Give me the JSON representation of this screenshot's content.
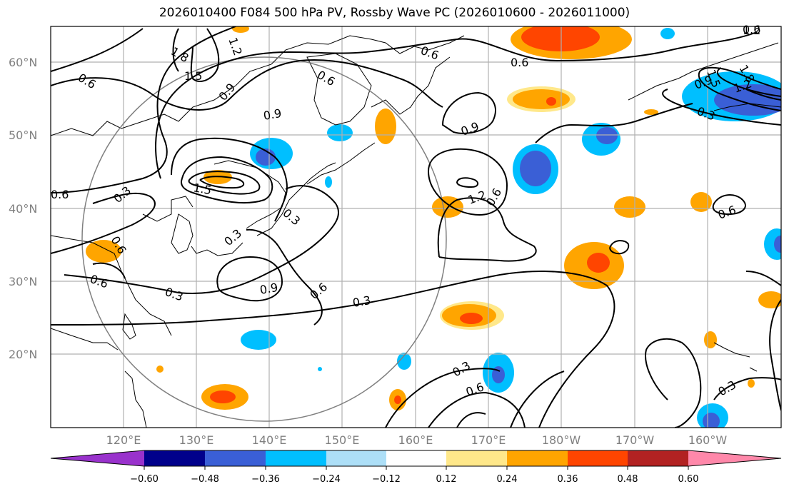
{
  "title": "2026010400 F084 500 hPa PV, Rossby Wave PC (2026010600 - 2026011000)",
  "map": {
    "lat_labels": [
      "60°N",
      "50°N",
      "40°N",
      "30°N",
      "20°N"
    ],
    "lon_labels": [
      "120°E",
      "130°E",
      "140°E",
      "150°E",
      "160°E",
      "170°E",
      "180°W",
      "170°W",
      "160°W"
    ],
    "contour_labels": [
      "0.6",
      "1.8",
      "1.2",
      "1.5",
      "0.9",
      "0.6",
      "0.6",
      "0.6",
      "0.6",
      "1.2",
      "1.5",
      "1.8",
      "0.9",
      "1.2",
      "0.3",
      "0.6",
      "0.3",
      "1.5",
      "0.9",
      "1.2",
      "0.9",
      "0.6",
      "0.3",
      "0.6",
      "0.3",
      "0.6",
      "0.9",
      "0.6",
      "0.3",
      "0.3",
      "0.6",
      "0.6",
      "0.3",
      "0.3"
    ]
  },
  "colorbar": {
    "ticks": [
      "−0.60",
      "−0.48",
      "−0.36",
      "−0.24",
      "−0.12",
      "0.12",
      "0.24",
      "0.36",
      "0.48",
      "0.60"
    ],
    "colors": [
      "#9932CC",
      "#00008B",
      "#3A5FD6",
      "#00BFFF",
      "#ADDFF7",
      "#FFFFFF",
      "#FFE88A",
      "#FFA500",
      "#FF4500",
      "#B22222",
      "#FF88AA"
    ]
  }
}
